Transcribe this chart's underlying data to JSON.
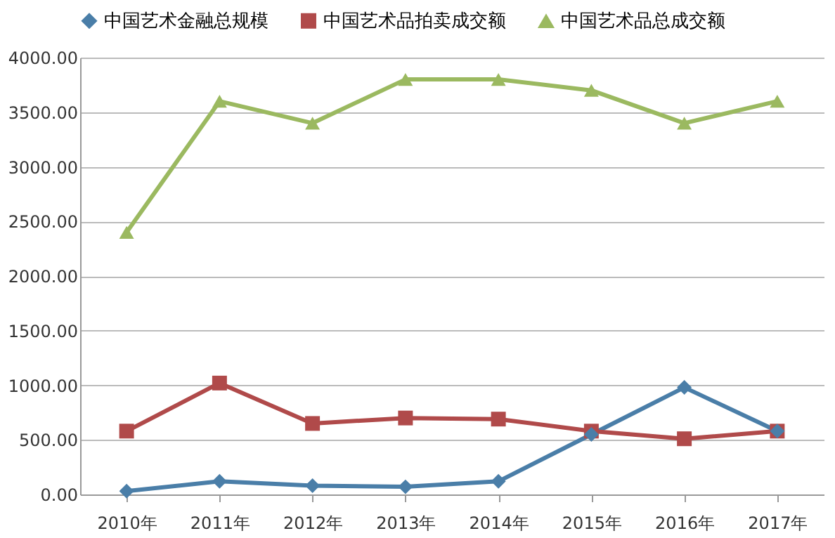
{
  "chart_data": {
    "type": "line",
    "categories": [
      "2010年",
      "2011年",
      "2012年",
      "2013年",
      "2014年",
      "2015年",
      "2016年",
      "2017年"
    ],
    "series": [
      {
        "name": "中国艺术金融总规模",
        "color": "#4a7ea8",
        "marker": "diamond",
        "values": [
          30,
          120,
          80,
          70,
          120,
          550,
          980,
          580
        ]
      },
      {
        "name": "中国艺术品拍卖成交额",
        "color": "#b04a4a",
        "marker": "square",
        "values": [
          580,
          1020,
          650,
          700,
          690,
          580,
          510,
          580
        ]
      },
      {
        "name": "中国艺术品总成交额",
        "color": "#9bb960",
        "marker": "triangle",
        "values": [
          2400,
          3600,
          3400,
          3800,
          3800,
          3700,
          3400,
          3600
        ]
      }
    ],
    "ylim": [
      0,
      4000
    ],
    "yticks": [
      {
        "value": 0,
        "label": "0.00"
      },
      {
        "value": 500,
        "label": "500.00"
      },
      {
        "value": 1000,
        "label": "1000.00"
      },
      {
        "value": 1500,
        "label": "1500.00"
      },
      {
        "value": 2000,
        "label": "2000.00"
      },
      {
        "value": 2500,
        "label": "2500.00"
      },
      {
        "value": 3000,
        "label": "3000.00"
      },
      {
        "value": 3500,
        "label": "3500.00"
      },
      {
        "value": 4000,
        "label": "4000.00"
      }
    ],
    "grid": "y",
    "legend": "top",
    "line_style": "solid"
  }
}
